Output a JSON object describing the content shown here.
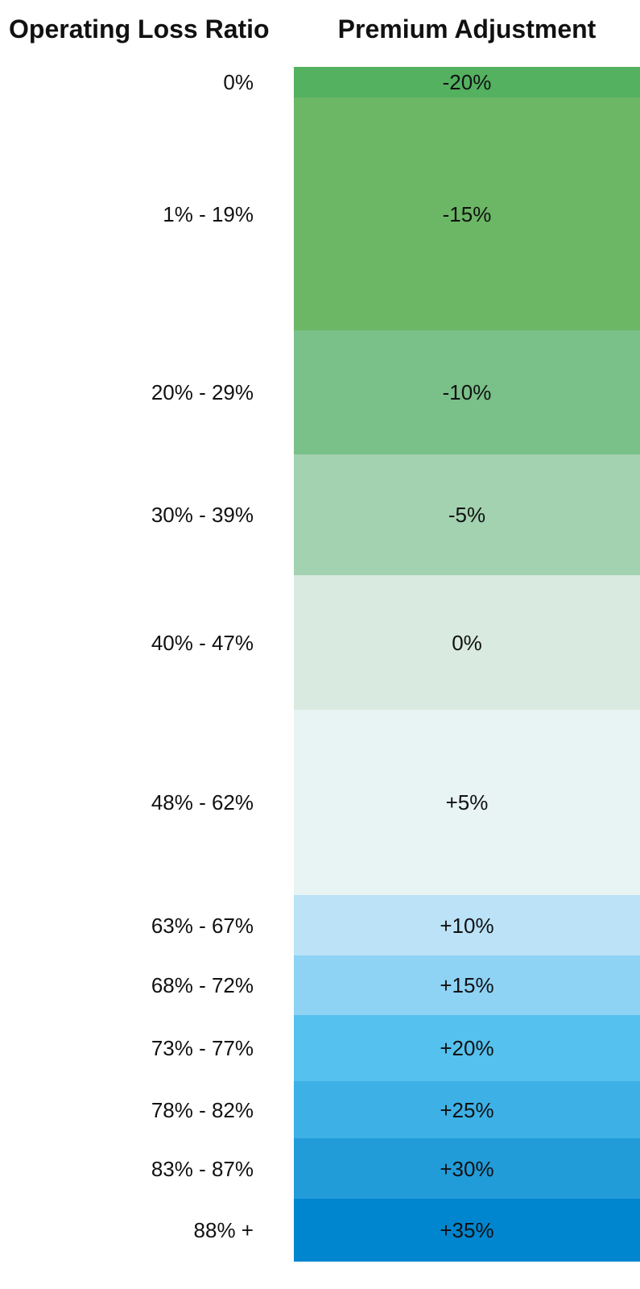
{
  "header": {
    "ratio_title": "Operating Loss Ratio",
    "adjustment_title": "Premium Adjustment"
  },
  "rows": [
    {
      "ratio": "0%",
      "adjustment": "-20%",
      "color": "#53b160"
    },
    {
      "ratio": "1% - 19%",
      "adjustment": "-15%",
      "color": "#6bb765"
    },
    {
      "ratio": "20% - 29%",
      "adjustment": "-10%",
      "color": "#7ac089"
    },
    {
      "ratio": "30% - 39%",
      "adjustment": "-5%",
      "color": "#a3d2b0"
    },
    {
      "ratio": "40% - 47%",
      "adjustment": "0%",
      "color": "#d9ebe0"
    },
    {
      "ratio": "48% - 62%",
      "adjustment": "+5%",
      "color": "#e8f3f3"
    },
    {
      "ratio": "63% - 67%",
      "adjustment": "+10%",
      "color": "#bbe2f7"
    },
    {
      "ratio": "68% - 72%",
      "adjustment": "+15%",
      "color": "#8ed2f4"
    },
    {
      "ratio": "73% - 77%",
      "adjustment": "+20%",
      "color": "#55c1ee"
    },
    {
      "ratio": "78% - 82%",
      "adjustment": "+25%",
      "color": "#3db1e6"
    },
    {
      "ratio": "83% - 87%",
      "adjustment": "+30%",
      "color": "#229bd9"
    },
    {
      "ratio": "88% +",
      "adjustment": "+35%",
      "color": "#0086cf"
    }
  ]
}
